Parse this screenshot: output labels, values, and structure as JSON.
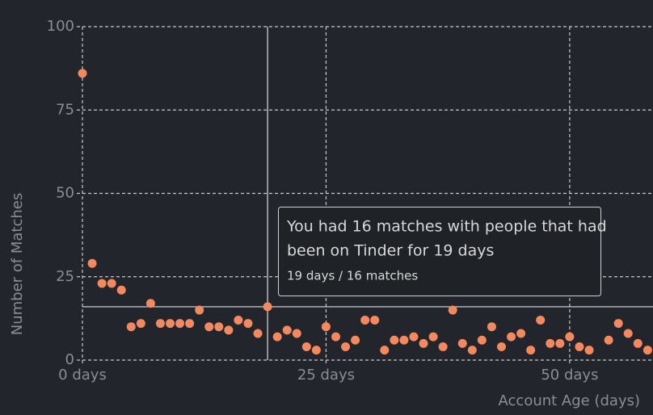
{
  "chart_data": {
    "type": "scatter",
    "x_label": "Account Age (days)",
    "y_label": "Number of Matches",
    "series": [
      {
        "color": "#f4895f",
        "x": [
          0,
          1,
          2,
          3,
          4,
          5,
          6,
          7,
          8,
          9,
          10,
          11,
          12,
          13,
          14,
          15,
          16,
          17,
          18,
          19,
          20,
          21,
          22,
          23,
          24,
          25,
          26,
          27,
          28,
          29,
          30,
          31,
          32,
          33,
          34,
          35,
          36,
          37,
          38,
          39,
          40,
          41,
          42,
          43,
          44,
          45,
          46,
          47,
          48,
          49,
          50,
          51,
          52,
          54,
          55,
          56,
          57,
          58
        ],
        "values": [
          86,
          29,
          23,
          23,
          21,
          10,
          11,
          17,
          11,
          11,
          11,
          11,
          15,
          10,
          10,
          9,
          12,
          11,
          8,
          16,
          7,
          9,
          8,
          4,
          3,
          10,
          7,
          4,
          6,
          12,
          12,
          3,
          6,
          6,
          7,
          5,
          7,
          4,
          15,
          5,
          3,
          6,
          10,
          4,
          7,
          8,
          3,
          12,
          5,
          5,
          7,
          4,
          3,
          6,
          11,
          8,
          5,
          3
        ]
      }
    ],
    "xlim": [
      0,
      58.55
    ],
    "ylim": [
      0,
      100
    ],
    "xticks": [
      {
        "value": 0,
        "label": "0 days"
      },
      {
        "value": 25,
        "label": "25 days"
      },
      {
        "value": 50,
        "label": "50 days"
      }
    ],
    "yticks": [
      0,
      25,
      50,
      75,
      100
    ],
    "grid": true,
    "tooltip": {
      "title_lines": [
        "You had 16 matches with people that had",
        "been on Tinder for 19 days"
      ],
      "detail": "19 days / 16 matches"
    }
  }
}
